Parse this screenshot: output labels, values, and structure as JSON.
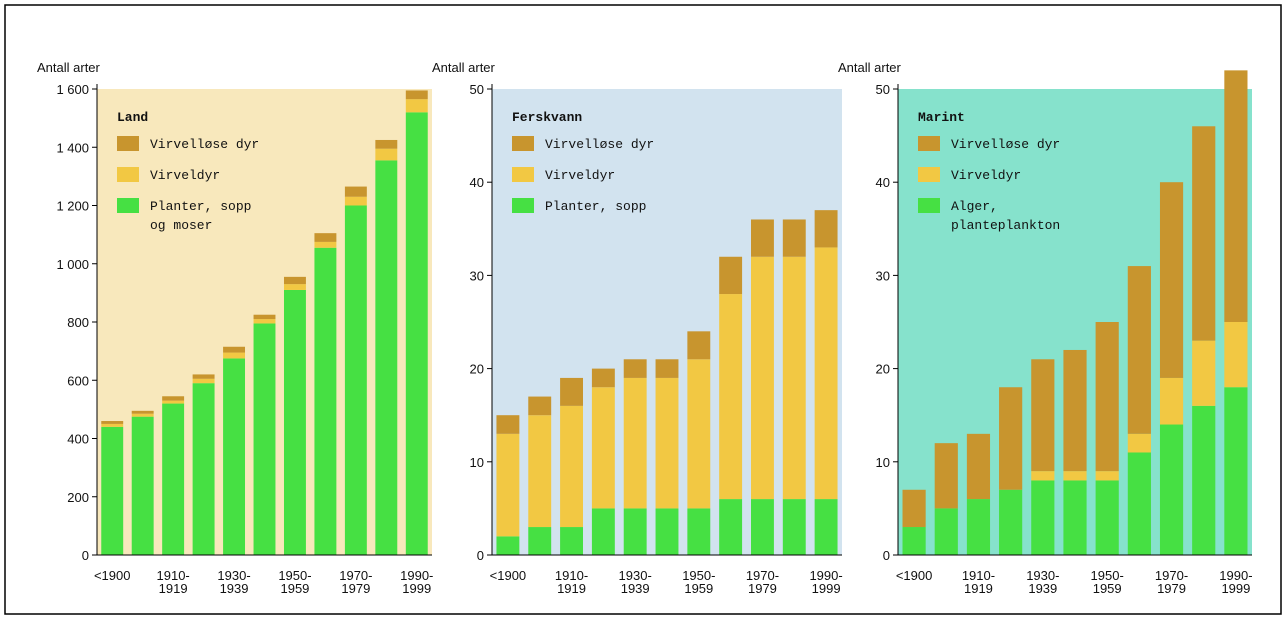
{
  "chart_data": [
    {
      "type": "bar",
      "title": "Land",
      "y_label": "Antall arter",
      "categories": [
        "<1900",
        null,
        "1910-\n1919",
        null,
        "1930-\n1939",
        null,
        "1950-\n1959",
        null,
        "1970-\n1979",
        null,
        "1990-\n1999"
      ],
      "series": [
        {
          "name": "Virvelløse dyr",
          "color": "#c8952e",
          "values": [
            10,
            10,
            15,
            15,
            20,
            15,
            25,
            30,
            35,
            30,
            30
          ]
        },
        {
          "name": "Virveldyr",
          "color": "#f2c843",
          "values": [
            10,
            10,
            10,
            15,
            20,
            15,
            20,
            20,
            30,
            40,
            45
          ]
        },
        {
          "name": "Planter, sopp\nog moser",
          "color": "#46e043",
          "values": [
            440,
            475,
            520,
            590,
            675,
            795,
            910,
            1055,
            1200,
            1355,
            1520
          ]
        }
      ],
      "ylim": [
        0,
        1600
      ],
      "yticks": [
        0,
        200,
        400,
        600,
        800,
        {
          "value": 1000,
          "label": "1 000"
        },
        {
          "value": 1200,
          "label": "1 200"
        },
        {
          "value": 1400,
          "label": "1 400"
        },
        {
          "value": 1600,
          "label": "1 600"
        }
      ],
      "background": "#f8e8bc"
    },
    {
      "type": "bar",
      "title": "Ferskvann",
      "y_label": "Antall arter",
      "categories": [
        "<1900",
        null,
        "1910-\n1919",
        null,
        "1930-\n1939",
        null,
        "1950-\n1959",
        null,
        "1970-\n1979",
        null,
        "1990-\n1999"
      ],
      "series": [
        {
          "name": "Virvelløse dyr",
          "color": "#c8952e",
          "values": [
            2,
            2,
            3,
            2,
            2,
            2,
            3,
            4,
            4,
            4,
            4
          ]
        },
        {
          "name": "Virveldyr",
          "color": "#f2c843",
          "values": [
            11,
            12,
            13,
            13,
            14,
            14,
            16,
            22,
            26,
            26,
            27
          ]
        },
        {
          "name": "Planter, sopp",
          "color": "#46e043",
          "values": [
            2,
            3,
            3,
            5,
            5,
            5,
            5,
            6,
            6,
            6,
            6
          ]
        }
      ],
      "ylim": [
        0,
        50
      ],
      "yticks": [
        0,
        10,
        20,
        30,
        40,
        50
      ],
      "background": "#d2e3ef"
    },
    {
      "type": "bar",
      "title": "Marint",
      "y_label": "Antall arter",
      "categories": [
        "<1900",
        null,
        "1910-\n1919",
        null,
        "1930-\n1939",
        null,
        "1950-\n1959",
        null,
        "1970-\n1979",
        null,
        "1990-\n1999"
      ],
      "series": [
        {
          "name": "Virvelløse dyr",
          "color": "#c8952e",
          "values": [
            4,
            7,
            7,
            11,
            12,
            13,
            16,
            18,
            21,
            23,
            27
          ]
        },
        {
          "name": "Virveldyr",
          "color": "#f2c843",
          "values": [
            0,
            0,
            0,
            0,
            1,
            1,
            1,
            2,
            5,
            7,
            7
          ]
        },
        {
          "name": "Alger,\nplanteplankton",
          "color": "#46e043",
          "values": [
            3,
            5,
            6,
            7,
            8,
            8,
            8,
            11,
            14,
            16,
            18
          ]
        }
      ],
      "ylim": [
        0,
        50
      ],
      "yticks": [
        0,
        10,
        20,
        30,
        40,
        50
      ],
      "background": "#86e2cc"
    }
  ]
}
